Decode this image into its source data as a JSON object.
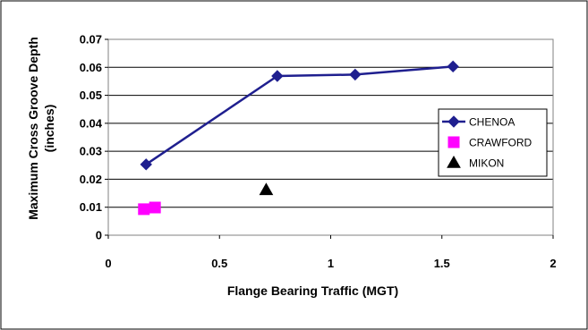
{
  "chart_data": {
    "type": "scatter",
    "title": "",
    "xlabel": "Flange Bearing Traffic (MGT)",
    "ylabel": [
      "Maximum Cross Groove Depth",
      "(inches)"
    ],
    "xlim": [
      0,
      2
    ],
    "ylim": [
      0,
      0.07
    ],
    "x_ticks": [
      "0",
      "0.5",
      "1",
      "1.5",
      "2"
    ],
    "y_ticks": [
      "0",
      "0.01",
      "0.02",
      "0.03",
      "0.04",
      "0.05",
      "0.06",
      "0.07"
    ],
    "grid": "horizontal",
    "legend_position": "right",
    "series": [
      {
        "name": "CHENOA",
        "color": "#1f1f8f",
        "marker": "diamond",
        "line": true,
        "points": [
          {
            "x": 0.17,
            "y": 0.0253
          },
          {
            "x": 0.76,
            "y": 0.0569
          },
          {
            "x": 1.11,
            "y": 0.0574
          },
          {
            "x": 1.55,
            "y": 0.0603
          }
        ]
      },
      {
        "name": "CRAWFORD",
        "color": "#ff00ff",
        "marker": "square",
        "line": false,
        "points": [
          {
            "x": 0.16,
            "y": 0.0093
          },
          {
            "x": 0.21,
            "y": 0.0099
          }
        ]
      },
      {
        "name": "MIKON",
        "color": "#000000",
        "marker": "triangle",
        "line": false,
        "points": [
          {
            "x": 0.71,
            "y": 0.0162
          }
        ]
      }
    ]
  }
}
